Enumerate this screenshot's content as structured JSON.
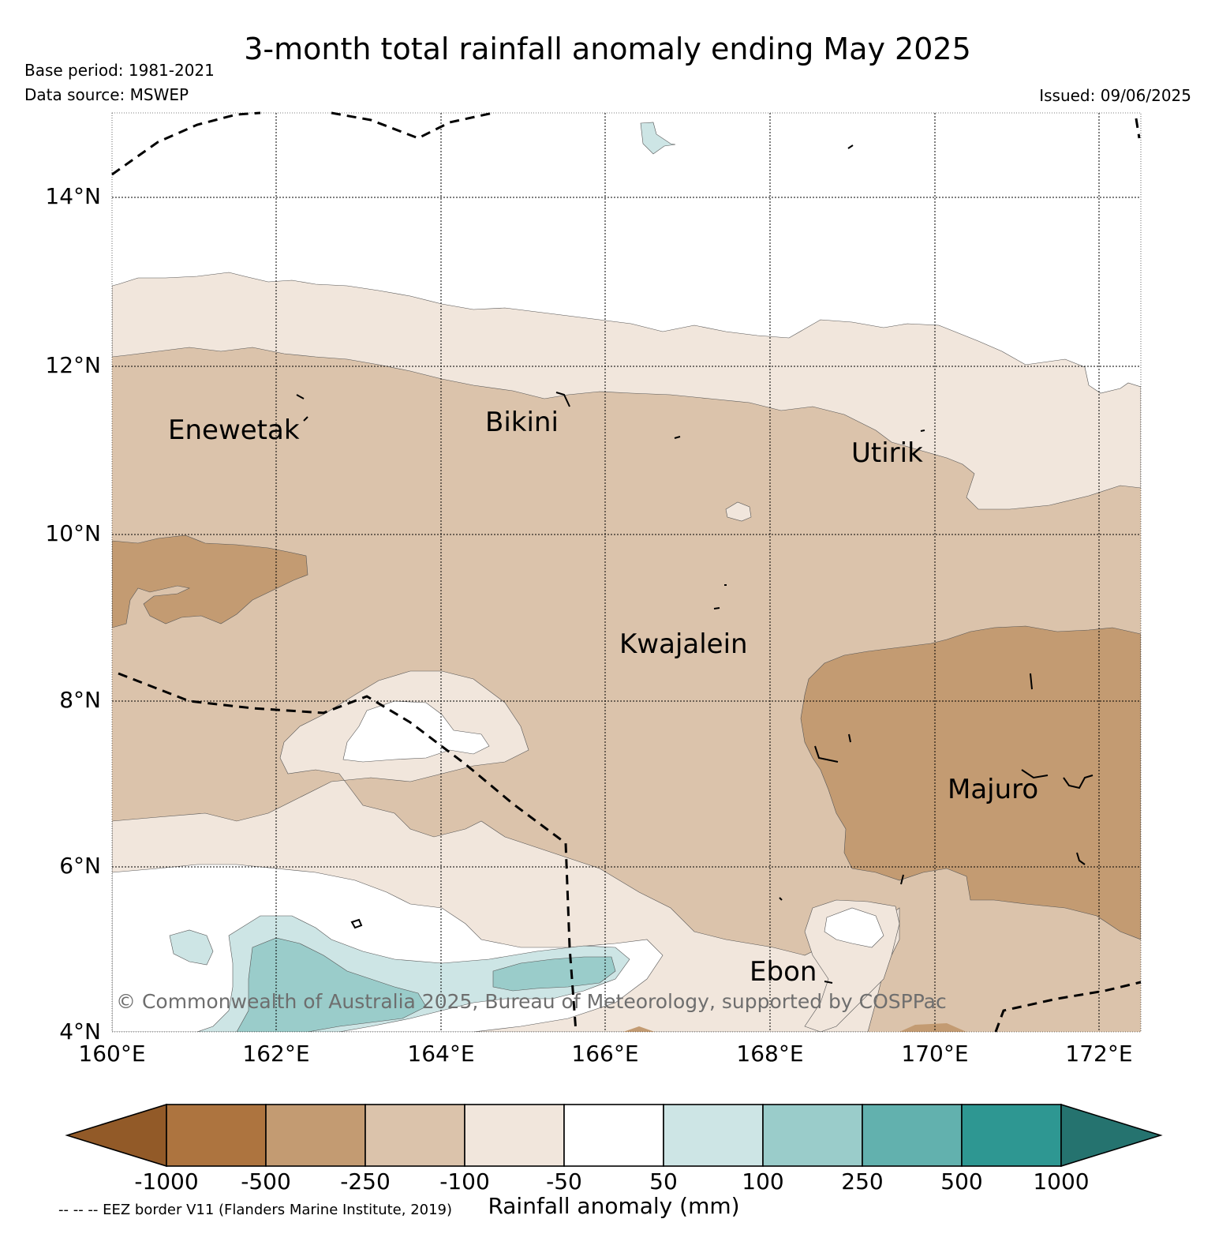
{
  "header": {
    "title": "3-month total rainfall anomaly ending May 2025",
    "base_period": "Base period: 1981-2021",
    "data_source": "Data source: MSWEP",
    "issued": "Issued: 09/06/2025"
  },
  "map": {
    "lat_labels": [
      "14°N",
      "12°N",
      "10°N",
      "8°N",
      "6°N",
      "4°N"
    ],
    "lon_labels": [
      "160°E",
      "162°E",
      "164°E",
      "166°E",
      "168°E",
      "170°E",
      "172°E"
    ],
    "places": {
      "enewetak": "Enewetak",
      "bikini": "Bikini",
      "utirik": "Utirik",
      "kwajalein": "Kwajalein",
      "majuro": "Majuro",
      "ebon": "Ebon"
    },
    "copyright": "© Commonwealth of Australia 2025, Bureau of Meteorology, supported by COSPPac",
    "border_color": "#000000",
    "grid_color": "#000000"
  },
  "colorbar": {
    "label": "Rainfall anomaly (mm)",
    "ticks": [
      "-1000",
      "-500",
      "-250",
      "-100",
      "-50",
      "50",
      "100",
      "250",
      "500",
      "1000"
    ],
    "colors": [
      "#925a28",
      "#ad743f",
      "#c39b72",
      "#dbc3ab",
      "#f1e6dc",
      "#ffffff",
      "#cde5e5",
      "#9accca",
      "#62b1ae",
      "#2e9792",
      "#25736f"
    ]
  },
  "footer": {
    "eez_note": "-- -- -- EEZ border V11 (Flanders Marine Institute, 2019)"
  }
}
